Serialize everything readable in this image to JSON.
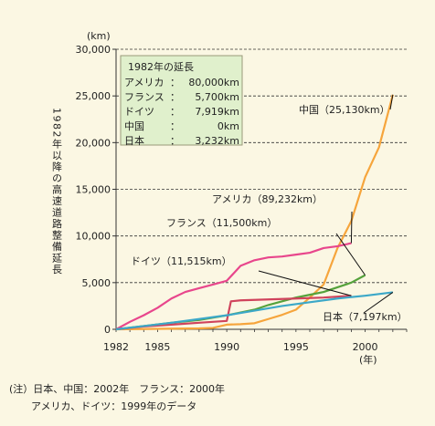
{
  "chart_data": {
    "type": "line",
    "unit": "(km)",
    "xunit": "(年)",
    "ylabel": "1982年以降の高速道路整備延長",
    "ylim": [
      0,
      30000
    ],
    "xlim": [
      1982,
      2003
    ],
    "yticks": [
      "0",
      "5,000",
      "10,000",
      "15,000",
      "20,000",
      "25,000",
      "30,000"
    ],
    "xticks": [
      "1982",
      "1985",
      "1990",
      "1995",
      "2000"
    ],
    "legend_box": {
      "title": "1982年の延長",
      "rows": [
        {
          "country": "アメリカ",
          "value": "80,000km"
        },
        {
          "country": "フランス",
          "value": "5,700km"
        },
        {
          "country": "ドイツ",
          "value": "7,919km"
        },
        {
          "country": "中国",
          "value": "0km"
        },
        {
          "country": "日本",
          "value": "3,232km",
          "highlight": true
        }
      ]
    },
    "series": [
      {
        "name": "中国",
        "label": "中国（25,130km）",
        "color": "#f6a53c",
        "x": [
          1982,
          1988,
          1989,
          1990,
          1991,
          1992,
          1993,
          1994,
          1995,
          1996,
          1997,
          1998,
          1999,
          2000,
          2001,
          2002
        ],
        "y": [
          0,
          100,
          150,
          500,
          550,
          650,
          1100,
          1550,
          2100,
          3400,
          4800,
          8700,
          11600,
          16300,
          19500,
          25130
        ]
      },
      {
        "name": "アメリカ",
        "label": "アメリカ（89,232km）",
        "color": "#e8468c",
        "x": [
          1982,
          1983,
          1984,
          1985,
          1986,
          1987,
          1988,
          1989,
          1990,
          1991,
          1992,
          1993,
          1994,
          1995,
          1996,
          1997,
          1998,
          1999
        ],
        "y": [
          0,
          800,
          1500,
          2300,
          3300,
          4000,
          4400,
          4800,
          5200,
          6800,
          7400,
          7700,
          7800,
          8000,
          8200,
          8700,
          8900,
          9232
        ]
      },
      {
        "name": "フランス",
        "label": "フランス（11,500km）",
        "color": "#55a23c",
        "x": [
          1982,
          1984,
          1986,
          1988,
          1990,
          1992,
          1993,
          1994,
          1995,
          1996,
          1997,
          1998,
          1999,
          2000
        ],
        "y": [
          0,
          350,
          700,
          1000,
          1500,
          2100,
          2600,
          3000,
          3400,
          3700,
          4000,
          4500,
          5000,
          5800
        ]
      },
      {
        "name": "ドイツ",
        "label": "ドイツ（11,515km）",
        "color": "#d0435c",
        "x": [
          1982,
          1984,
          1986,
          1988,
          1989,
          1990,
          1990.3,
          1991,
          1993,
          1995,
          1997,
          1999
        ],
        "y": [
          0,
          300,
          500,
          700,
          800,
          900,
          3000,
          3100,
          3200,
          3300,
          3400,
          3596
        ]
      },
      {
        "name": "日本",
        "label": "日本（7,197km）",
        "color": "#3ca8c8",
        "x": [
          1982,
          1984,
          1986,
          1988,
          1990,
          1992,
          1994,
          1996,
          1998,
          2000,
          2002
        ],
        "y": [
          0,
          350,
          700,
          1100,
          1500,
          2000,
          2500,
          2900,
          3300,
          3600,
          3965
        ]
      }
    ]
  },
  "notes": {
    "line1": "(注）日本、中国：2002年　フランス：2000年",
    "line2": "アメリカ、ドイツ：1999年のデータ"
  }
}
